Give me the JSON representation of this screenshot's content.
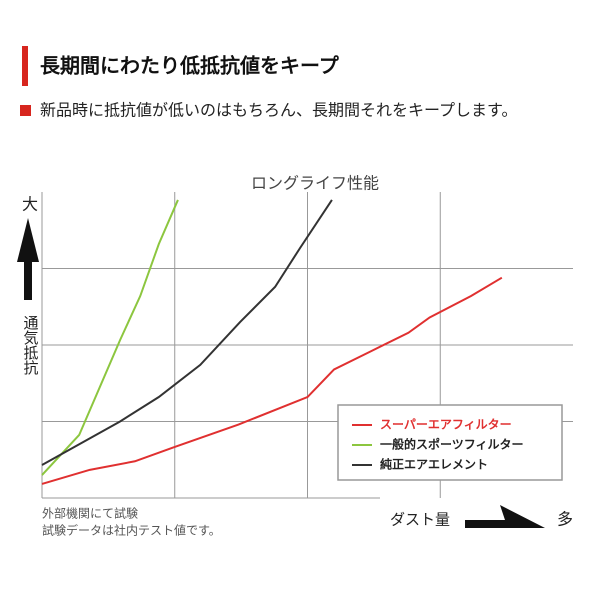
{
  "header": {
    "title": "長期間にわたり低抵抗値をキープ",
    "lead": "新品時に抵抗値が低いのはもちろん、長期間それをキープします。"
  },
  "chart_data": {
    "type": "line",
    "title": "ロングライフ性能",
    "y_label": "通気抵抗",
    "y_max_label": "大",
    "x_label": "ダスト量",
    "x_max_label": "多",
    "xlim": [
      0,
      100
    ],
    "ylim": [
      0,
      100
    ],
    "grid_x": [
      25,
      50,
      75
    ],
    "grid_y": [
      25,
      50,
      75
    ],
    "series": [
      {
        "name": "スーパーエアフィルター",
        "color": "#e03030",
        "x": [
          0,
          9,
          17.5,
          25,
          37,
          50,
          55,
          62,
          69,
          73,
          80.8,
          86.6
        ],
        "values": [
          4.6,
          9.2,
          12,
          16.7,
          24,
          33,
          42,
          48,
          54,
          59,
          66,
          72
        ]
      },
      {
        "name": "一般的スポーツフィルター",
        "color": "#8cc63f",
        "x": [
          0,
          7,
          14.7,
          18.5,
          22,
          25.6
        ],
        "values": [
          7.5,
          20.6,
          51.6,
          66,
          83,
          97.4
        ]
      },
      {
        "name": "純正エアエレメント",
        "color": "#333333",
        "x": [
          0,
          14.7,
          22,
          29.8,
          37.3,
          43.9,
          48.6,
          54.6
        ],
        "values": [
          10.8,
          25,
          33,
          43.5,
          57.5,
          69,
          81.7,
          97.4
        ]
      }
    ],
    "notes": [
      "外部機関にて試験",
      "試験データは社内テスト値です。"
    ]
  }
}
